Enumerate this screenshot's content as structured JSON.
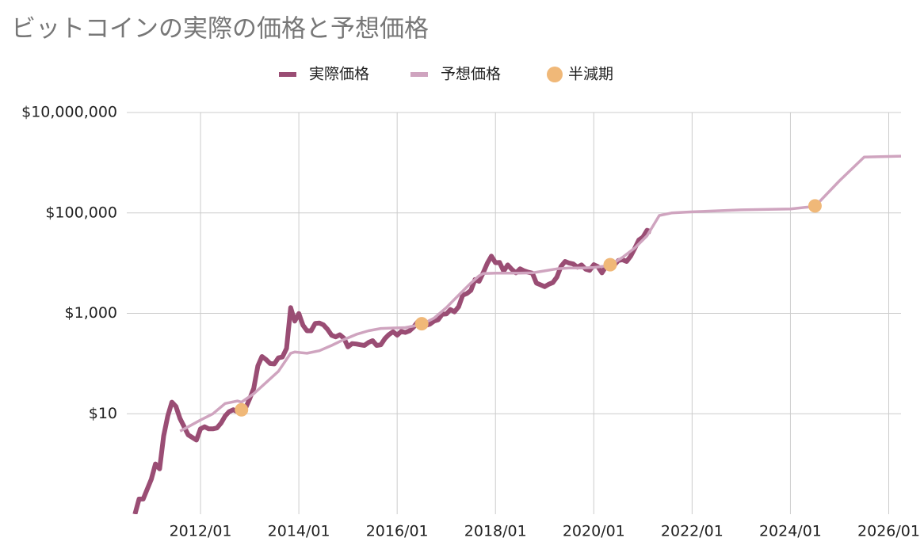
{
  "chart_data": {
    "type": "line",
    "title": "ビットコインの実際の価格と予想価格",
    "log_scale": true,
    "grid": true,
    "legend": "top",
    "xlim": [
      "2010/07",
      "2026/04"
    ],
    "xticks": [
      "2012/01",
      "2014/01",
      "2016/01",
      "2018/01",
      "2020/01",
      "2022/01",
      "2024/01",
      "2026/01"
    ],
    "ylim": [
      0.1,
      10000000
    ],
    "yticks": [
      {
        "value": 10,
        "label": "$10"
      },
      {
        "value": 1000,
        "label": "$1,000"
      },
      {
        "value": 100000,
        "label": "$100,000"
      },
      {
        "value": 10000000,
        "label": "$10,000,000"
      }
    ],
    "series": [
      {
        "name": "実際価格",
        "type": "line",
        "color": "#9a4d74",
        "x": [
          "2010/09",
          "2010/10",
          "2010/11",
          "2011/01",
          "2011/02",
          "2011/03",
          "2011/04",
          "2011/05",
          "2011/06",
          "2011/07",
          "2011/08",
          "2011/10",
          "2011/12",
          "2012/01",
          "2012/02",
          "2012/03",
          "2012/04",
          "2012/05",
          "2012/06",
          "2012/07",
          "2012/08",
          "2012/09",
          "2012/10",
          "2012/11",
          "2012/12",
          "2013/01",
          "2013/02",
          "2013/03",
          "2013/04",
          "2013/05",
          "2013/06",
          "2013/07",
          "2013/08",
          "2013/09",
          "2013/10",
          "2013/11",
          "2013/12",
          "2014/01",
          "2014/02",
          "2014/03",
          "2014/04",
          "2014/05",
          "2014/06",
          "2014/07",
          "2014/08",
          "2014/09",
          "2014/10",
          "2014/11",
          "2014/12",
          "2015/01",
          "2015/02",
          "2015/03",
          "2015/04",
          "2015/05",
          "2015/06",
          "2015/07",
          "2015/08",
          "2015/09",
          "2015/10",
          "2015/11",
          "2015/12",
          "2016/01",
          "2016/02",
          "2016/03",
          "2016/04",
          "2016/05",
          "2016/06",
          "2016/07",
          "2016/08",
          "2016/09",
          "2016/10",
          "2016/11",
          "2016/12",
          "2017/01",
          "2017/02",
          "2017/03",
          "2017/04",
          "2017/05",
          "2017/06",
          "2017/07",
          "2017/08",
          "2017/09",
          "2017/10",
          "2017/11",
          "2017/12",
          "2018/01",
          "2018/02",
          "2018/03",
          "2018/04",
          "2018/05",
          "2018/06",
          "2018/07",
          "2018/08",
          "2018/09",
          "2018/10",
          "2018/11",
          "2018/12",
          "2019/01",
          "2019/02",
          "2019/03",
          "2019/04",
          "2019/05",
          "2019/06",
          "2019/07",
          "2019/08",
          "2019/09",
          "2019/10",
          "2019/11",
          "2019/12",
          "2020/01",
          "2020/02",
          "2020/03",
          "2020/04",
          "2020/05",
          "2020/06",
          "2020/07",
          "2020/08",
          "2020/09",
          "2020/10",
          "2020/11",
          "2020/12",
          "2021/01",
          "2021/02",
          "2021/03"
        ],
        "values": [
          0.1,
          0.2,
          0.2,
          0.5,
          1,
          0.8,
          3.6,
          9,
          17,
          14,
          8,
          3.8,
          3,
          5,
          5.5,
          5,
          5,
          5.2,
          6.5,
          9,
          11,
          12,
          11,
          12,
          13,
          20,
          32,
          90,
          138,
          120,
          100,
          98,
          130,
          135,
          200,
          1300,
          700,
          990,
          580,
          450,
          450,
          630,
          640,
          590,
          480,
          365,
          340,
          375,
          320,
          215,
          250,
          245,
          236,
          230,
          263,
          285,
          230,
          236,
          314,
          377,
          430,
          368,
          437,
          416,
          448,
          531,
          673,
          624,
          575,
          609,
          700,
          745,
          960,
          970,
          1190,
          1070,
          1350,
          2300,
          2480,
          2870,
          4700,
          4340,
          6400,
          9900,
          13800,
          10200,
          10300,
          6900,
          9200,
          7500,
          6400,
          7700,
          7000,
          6600,
          6300,
          4000,
          3700,
          3400,
          3800,
          4100,
          5300,
          8600,
          10800,
          10000,
          9600,
          8300,
          9200,
          7600,
          7200,
          9300,
          8500,
          6400,
          8600,
          9500,
          9100,
          11300,
          11700,
          10800,
          13800,
          19700,
          29000,
          33000,
          45000,
          42000
        ]
      },
      {
        "name": "予想価格",
        "type": "line",
        "color": "#cfa4bf",
        "x": [
          "2011/08",
          "2011/10",
          "2012/01",
          "2012/04",
          "2012/07",
          "2012/10",
          "2012/11",
          "2013/02",
          "2013/05",
          "2013/08",
          "2013/11",
          "2013/12",
          "2014/03",
          "2014/06",
          "2014/09",
          "2014/12",
          "2015/03",
          "2015/06",
          "2015/09",
          "2015/12",
          "2016/03",
          "2016/07",
          "2016/10",
          "2017/01",
          "2017/04",
          "2017/07",
          "2017/09",
          "2017/10",
          "2018/01",
          "2018/07",
          "2018/10",
          "2019/01",
          "2019/04",
          "2019/07",
          "2019/10",
          "2020/01",
          "2020/05",
          "2020/08",
          "2020/11",
          "2021/02",
          "2021/05",
          "2021/08",
          "2022/01",
          "2023/01",
          "2024/01",
          "2024/07",
          "2025/01",
          "2025/07",
          "2026/04"
        ],
        "values": [
          4.5,
          5.5,
          7.5,
          10,
          16,
          18,
          17,
          25,
          42,
          70,
          160,
          170,
          160,
          180,
          230,
          300,
          380,
          450,
          500,
          510,
          520,
          600,
          800,
          1300,
          2300,
          4000,
          5600,
          6200,
          6300,
          6300,
          6400,
          7000,
          7700,
          8000,
          8000,
          8200,
          9000,
          13000,
          20000,
          35000,
          89000,
          100000,
          105000,
          115000,
          120000,
          135000,
          440000,
          1300000,
          1350000
        ]
      },
      {
        "name": "半減期",
        "type": "scatter",
        "color": "#f0b878",
        "x": [
          "2012/11",
          "2016/07",
          "2020/05",
          "2024/07"
        ],
        "values": [
          12,
          620,
          9300,
          138000
        ]
      }
    ]
  }
}
